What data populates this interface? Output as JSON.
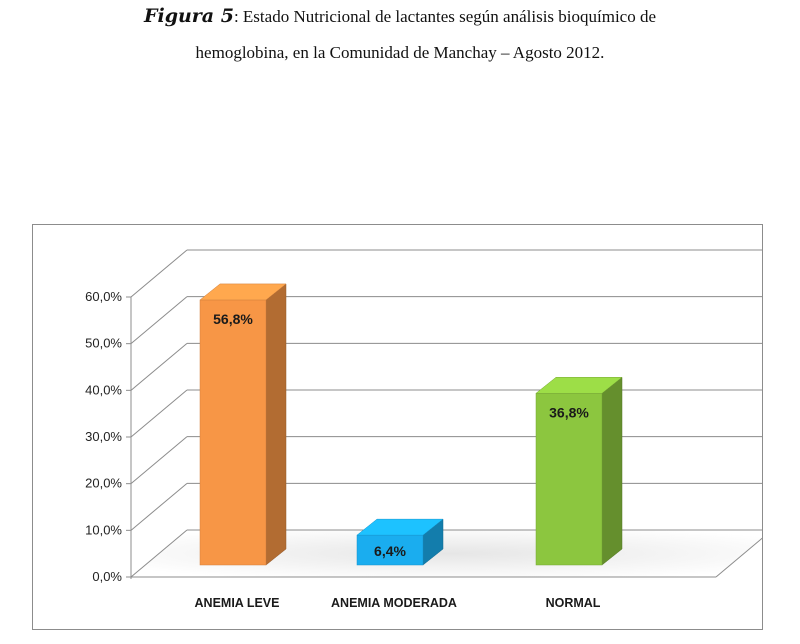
{
  "caption": {
    "figure_label": "Figura 5",
    "line1": ": Estado Nutricional de lactantes según análisis bioquímico de",
    "line2": "hemoglobina, en la Comunidad de Manchay – Agosto 2012."
  },
  "chart_data": {
    "type": "bar",
    "style": "3d-column",
    "categories": [
      "ANEMIA LEVE",
      "ANEMIA MODERADA",
      "NORMAL"
    ],
    "values": [
      56.8,
      6.4,
      36.8
    ],
    "value_labels": [
      "56,8%",
      "6,4%",
      "36,8%"
    ],
    "colors": [
      "#F79646",
      "#1AADEF",
      "#8CC63F"
    ],
    "yticks": [
      "0,0%",
      "10,0%",
      "20,0%",
      "30,0%",
      "40,0%",
      "50,0%",
      "60,0%"
    ],
    "ylim": [
      0,
      60
    ],
    "grid": true,
    "legend": "none"
  }
}
